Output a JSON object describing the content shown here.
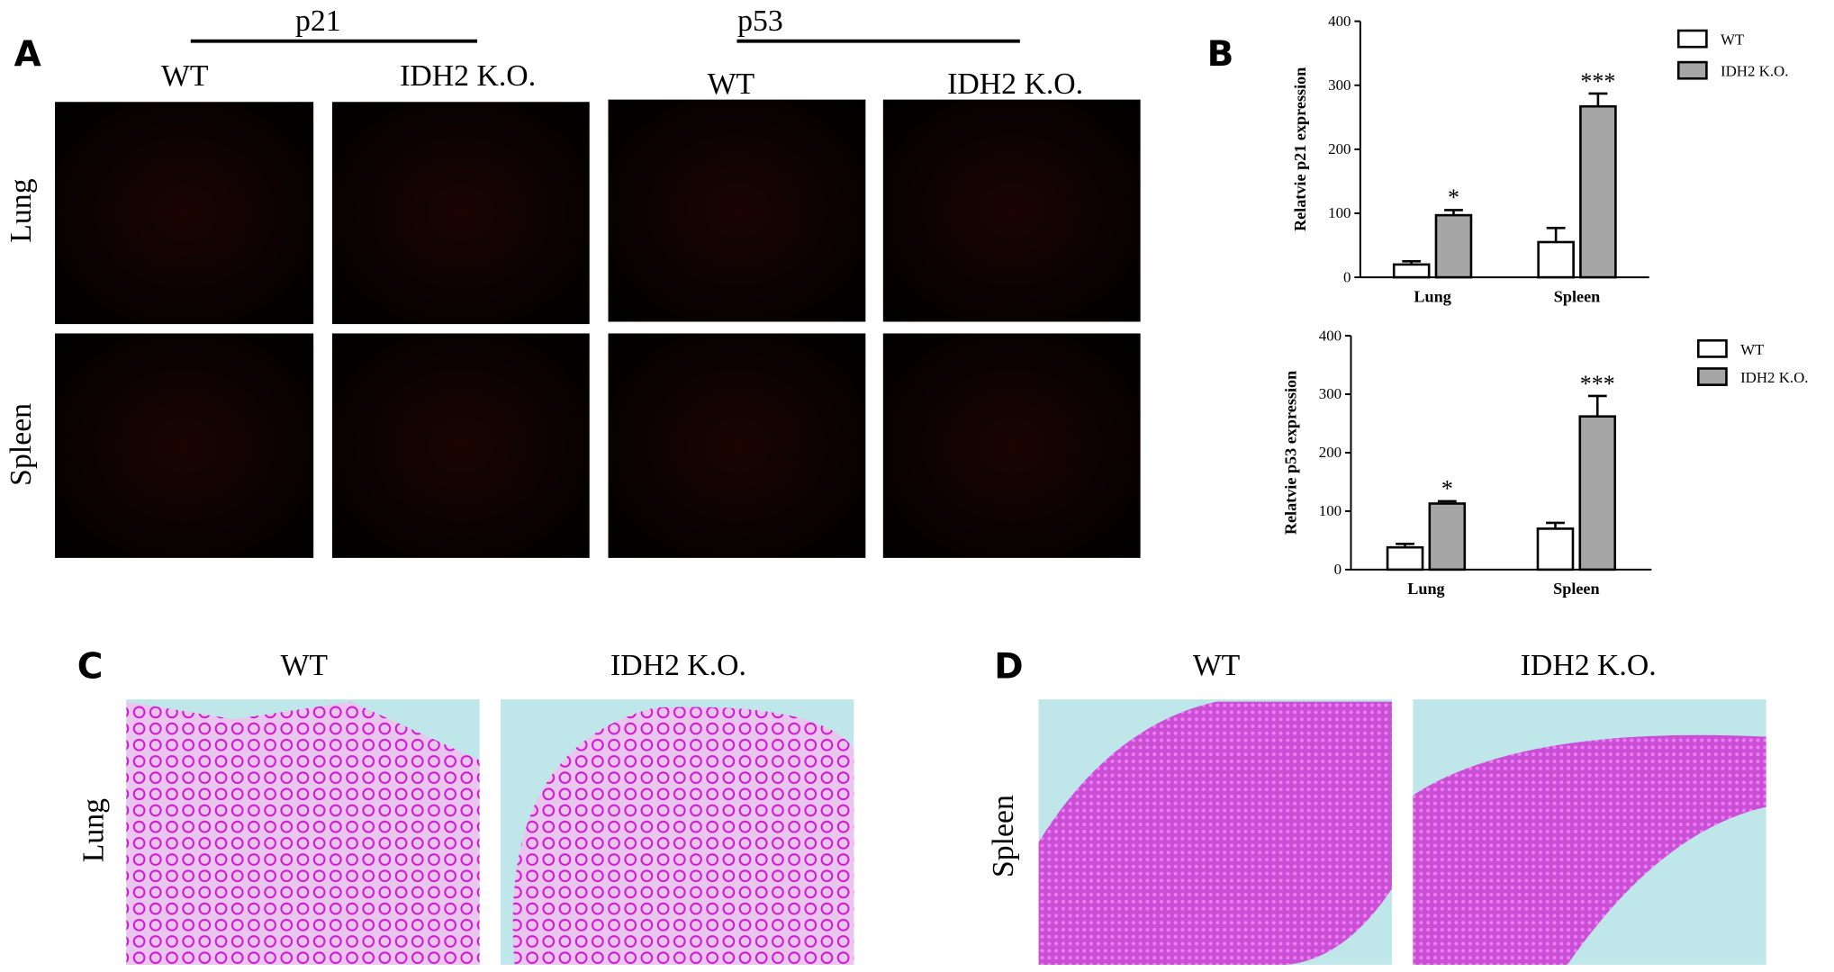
{
  "panel_a": {
    "label": "A",
    "groups": [
      "p21",
      "p53"
    ],
    "columns": [
      "WT",
      "IDH2 K.O.",
      "WT",
      "IDH2 K.O."
    ],
    "rows": [
      "Lung",
      "Spleen"
    ]
  },
  "panel_b": {
    "label": "B"
  },
  "panel_c": {
    "label": "C",
    "columns": [
      "WT",
      "IDH2 K.O."
    ],
    "row": "Lung"
  },
  "panel_d": {
    "label": "D",
    "columns": [
      "WT",
      "IDH2 K.O."
    ],
    "row": "Spleen"
  },
  "chart_data": [
    {
      "type": "bar",
      "y_label": "Relatvie p21 expression",
      "categories": [
        "Lung",
        "Spleen"
      ],
      "series": [
        {
          "name": "WT",
          "color": "#ffffff",
          "values": [
            20,
            55
          ],
          "errors": [
            5,
            22
          ]
        },
        {
          "name": "IDH2 K.O.",
          "color": "#a6a6a6",
          "values": [
            97,
            267
          ],
          "errors": [
            8,
            20
          ],
          "annotations": [
            "*",
            "***"
          ]
        }
      ],
      "ylim": [
        0,
        400
      ],
      "yticks": [
        0,
        100,
        200,
        300,
        400
      ],
      "legend": "right"
    },
    {
      "type": "bar",
      "y_label": "Relatvie p53 expression",
      "categories": [
        "Lung",
        "Spleen"
      ],
      "series": [
        {
          "name": "WT",
          "color": "#ffffff",
          "values": [
            38,
            70
          ],
          "errors": [
            6,
            10
          ]
        },
        {
          "name": "IDH2 K.O.",
          "color": "#a6a6a6",
          "values": [
            113,
            262
          ],
          "errors": [
            4,
            35
          ],
          "annotations": [
            "*",
            "***"
          ]
        }
      ],
      "ylim": [
        0,
        400
      ],
      "yticks": [
        0,
        100,
        200,
        300,
        400
      ],
      "legend": "right"
    }
  ]
}
